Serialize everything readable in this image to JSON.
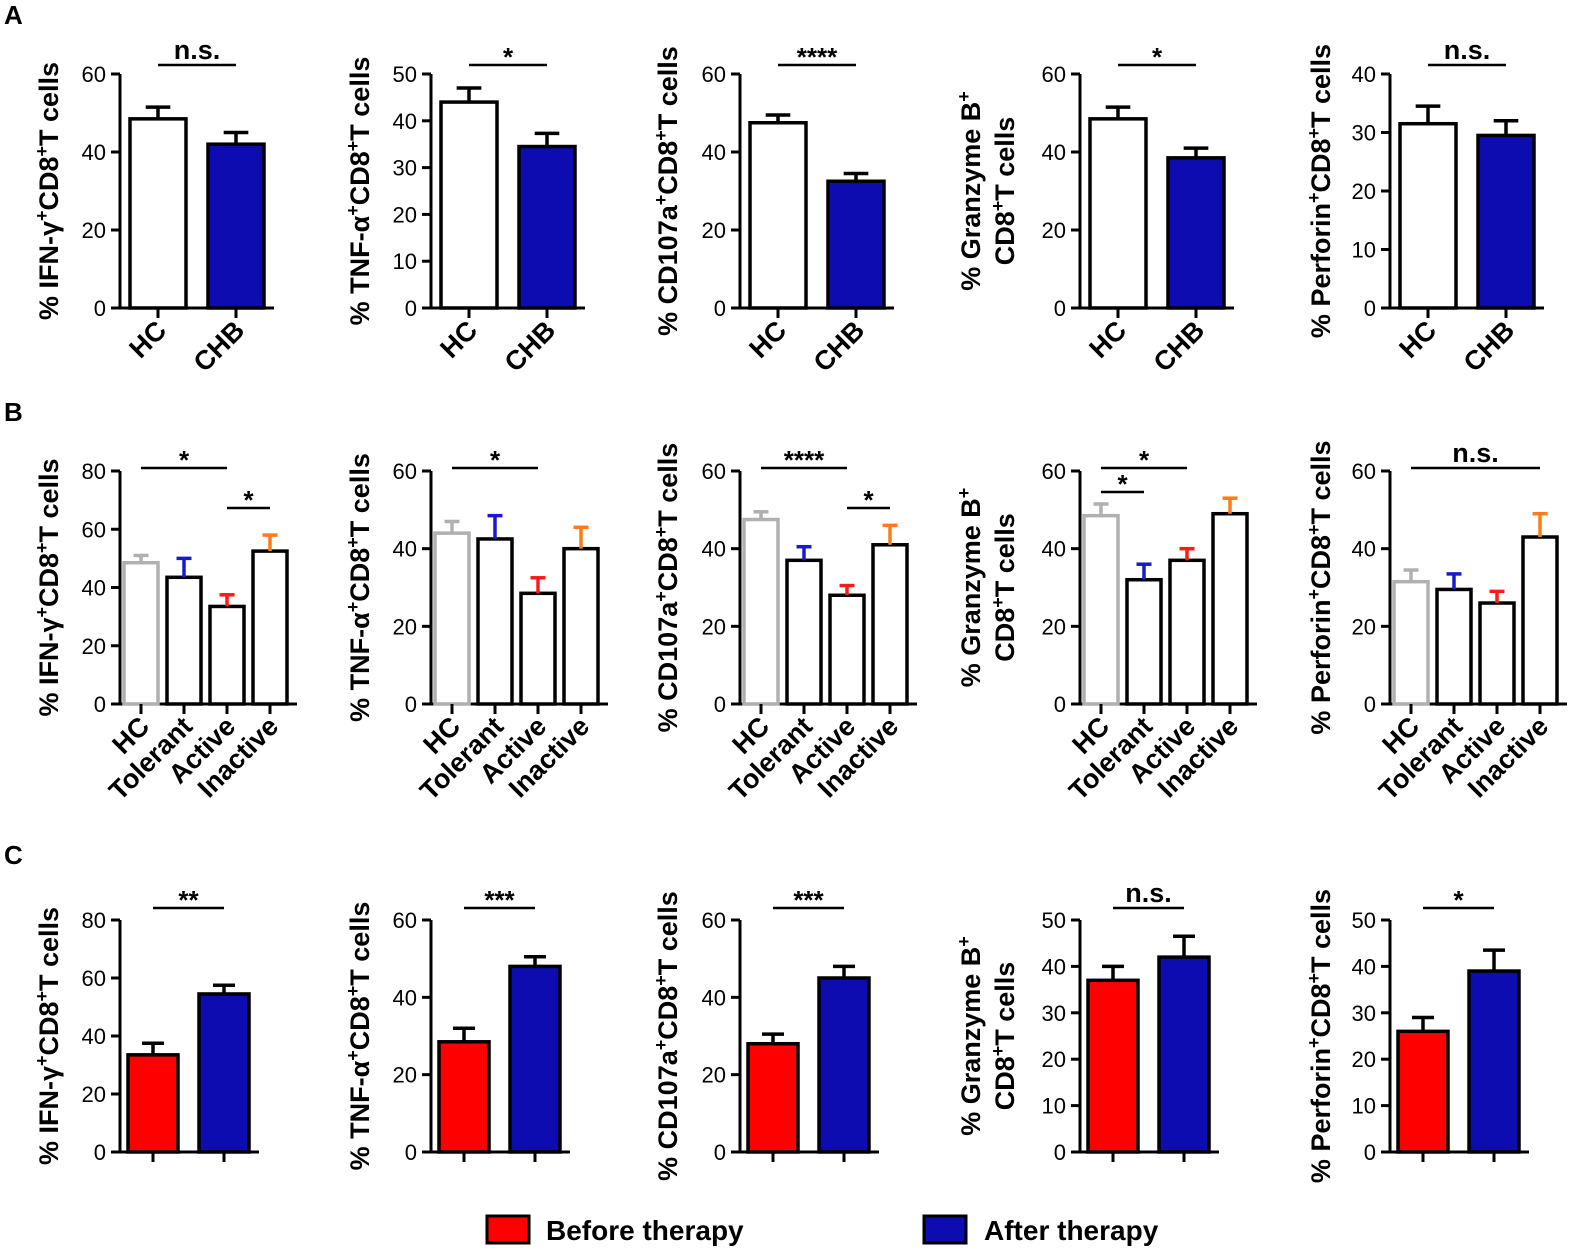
{
  "colors": {
    "white": "#ffffff",
    "blue": "#0c0cb0",
    "red": "#ff0000",
    "gray": "#b0b0b0",
    "black": "#000000",
    "err_blue": "#1a1ac8",
    "err_red": "#ff1a1a",
    "err_orange": "#ff7a1a",
    "err_gray": "#b0b0b0"
  },
  "panel_labels": [
    "A",
    "B",
    "C"
  ],
  "legend": {
    "before": "Before therapy",
    "after": "After therapy"
  },
  "chart_data": [
    {
      "id": "A1",
      "type": "bar",
      "ylabel": "% IFN-γ+CD8+T cells",
      "ylim": [
        0,
        60
      ],
      "ticks": [
        0,
        20,
        40,
        60
      ],
      "categories": [
        "HC",
        "CHB"
      ],
      "values": [
        48.5,
        42
      ],
      "errors": [
        3,
        3
      ],
      "fill": [
        "white",
        "blue"
      ],
      "edge": [
        "black",
        "black"
      ],
      "err": [
        "black",
        "black"
      ],
      "sig": [
        {
          "from": 0,
          "to": 1,
          "label": "n.s."
        }
      ]
    },
    {
      "id": "A2",
      "type": "bar",
      "ylabel": "% TNF-α+CD8+T cells",
      "ylim": [
        0,
        50
      ],
      "ticks": [
        0,
        10,
        20,
        30,
        40,
        50
      ],
      "categories": [
        "HC",
        "CHB"
      ],
      "values": [
        44,
        34.5
      ],
      "errors": [
        3,
        2.8
      ],
      "fill": [
        "white",
        "blue"
      ],
      "edge": [
        "black",
        "black"
      ],
      "err": [
        "black",
        "black"
      ],
      "sig": [
        {
          "from": 0,
          "to": 1,
          "label": "*"
        }
      ]
    },
    {
      "id": "A3",
      "type": "bar",
      "ylabel": "% CD107a+CD8+T cells",
      "ylim": [
        0,
        60
      ],
      "ticks": [
        0,
        20,
        40,
        60
      ],
      "categories": [
        "HC",
        "CHB"
      ],
      "values": [
        47.5,
        32.5
      ],
      "errors": [
        2,
        2
      ],
      "fill": [
        "white",
        "blue"
      ],
      "edge": [
        "black",
        "black"
      ],
      "err": [
        "black",
        "black"
      ],
      "sig": [
        {
          "from": 0,
          "to": 1,
          "label": "****"
        }
      ]
    },
    {
      "id": "A4",
      "type": "bar",
      "ylabel": "% Granzyme B+ CD8+T cells",
      "ylim": [
        0,
        60
      ],
      "ticks": [
        0,
        20,
        40,
        60
      ],
      "categories": [
        "HC",
        "CHB"
      ],
      "values": [
        48.5,
        38.5
      ],
      "errors": [
        3,
        2.5
      ],
      "fill": [
        "white",
        "blue"
      ],
      "edge": [
        "black",
        "black"
      ],
      "err": [
        "black",
        "black"
      ],
      "sig": [
        {
          "from": 0,
          "to": 1,
          "label": "*"
        }
      ]
    },
    {
      "id": "A5",
      "type": "bar",
      "ylabel": "% Perforin+CD8+T cells",
      "ylim": [
        0,
        40
      ],
      "ticks": [
        0,
        10,
        20,
        30,
        40
      ],
      "categories": [
        "HC",
        "CHB"
      ],
      "values": [
        31.5,
        29.5
      ],
      "errors": [
        3,
        2.5
      ],
      "fill": [
        "white",
        "blue"
      ],
      "edge": [
        "black",
        "black"
      ],
      "err": [
        "black",
        "black"
      ],
      "sig": [
        {
          "from": 0,
          "to": 1,
          "label": "n.s."
        }
      ]
    },
    {
      "id": "B1",
      "type": "bar",
      "ylabel": "% IFN-γ+CD8+T cells",
      "ylim": [
        0,
        80
      ],
      "ticks": [
        0,
        20,
        40,
        60,
        80
      ],
      "categories": [
        "HC",
        "Tolerant",
        "Active",
        "Inactive"
      ],
      "values": [
        48.5,
        43.5,
        33.5,
        52.5
      ],
      "errors": [
        2.5,
        6.5,
        4,
        5.5
      ],
      "fill": [
        "white",
        "white",
        "white",
        "white"
      ],
      "edge": [
        "gray",
        "black",
        "black",
        "black"
      ],
      "err": [
        "err_gray",
        "err_blue",
        "err_red",
        "err_orange"
      ],
      "sig": [
        {
          "from": 0,
          "to": 2,
          "label": "*",
          "level": 0
        },
        {
          "from": 2,
          "to": 3,
          "label": "*",
          "level": 1
        }
      ]
    },
    {
      "id": "B2",
      "type": "bar",
      "ylabel": "% TNF-α+CD8+T cells",
      "ylim": [
        0,
        60
      ],
      "ticks": [
        0,
        20,
        40,
        60
      ],
      "categories": [
        "HC",
        "Tolerant",
        "Active",
        "Inactive"
      ],
      "values": [
        44,
        42.5,
        28.5,
        40
      ],
      "errors": [
        3,
        6,
        4,
        5.5
      ],
      "fill": [
        "white",
        "white",
        "white",
        "white"
      ],
      "edge": [
        "gray",
        "black",
        "black",
        "black"
      ],
      "err": [
        "err_gray",
        "err_blue",
        "err_red",
        "err_orange"
      ],
      "sig": [
        {
          "from": 0,
          "to": 2,
          "label": "*",
          "level": 0
        }
      ]
    },
    {
      "id": "B3",
      "type": "bar",
      "ylabel": "% CD107a+CD8+T cells",
      "ylim": [
        0,
        60
      ],
      "ticks": [
        0,
        20,
        40,
        60
      ],
      "categories": [
        "HC",
        "Tolerant",
        "Active",
        "Inactive"
      ],
      "values": [
        47.5,
        37,
        28,
        41
      ],
      "errors": [
        2,
        3.5,
        2.5,
        5
      ],
      "fill": [
        "white",
        "white",
        "white",
        "white"
      ],
      "edge": [
        "gray",
        "black",
        "black",
        "black"
      ],
      "err": [
        "err_gray",
        "err_blue",
        "err_red",
        "err_orange"
      ],
      "sig": [
        {
          "from": 0,
          "to": 2,
          "label": "****",
          "level": 0
        },
        {
          "from": 2,
          "to": 3,
          "label": "*",
          "level": 1
        }
      ]
    },
    {
      "id": "B4",
      "type": "bar",
      "ylabel": "% Granzyme B+ CD8+T cells",
      "ylim": [
        0,
        60
      ],
      "ticks": [
        0,
        20,
        40,
        60
      ],
      "categories": [
        "HC",
        "Tolerant",
        "Active",
        "Inactive"
      ],
      "values": [
        48.5,
        32,
        37,
        49
      ],
      "errors": [
        3,
        4,
        3,
        4
      ],
      "fill": [
        "white",
        "white",
        "white",
        "white"
      ],
      "edge": [
        "gray",
        "black",
        "black",
        "black"
      ],
      "err": [
        "err_gray",
        "err_blue",
        "err_red",
        "err_orange"
      ],
      "sig": [
        {
          "from": 0,
          "to": 2,
          "label": "*",
          "level": 0
        },
        {
          "from": 0,
          "to": 1,
          "label": "*",
          "level": 1
        }
      ]
    },
    {
      "id": "B5",
      "type": "bar",
      "ylabel": "% Perforin+CD8+T cells",
      "ylim": [
        0,
        60
      ],
      "ticks": [
        0,
        20,
        40,
        60
      ],
      "categories": [
        "HC",
        "Tolerant",
        "Active",
        "Inactive"
      ],
      "values": [
        31.5,
        29.5,
        26,
        43
      ],
      "errors": [
        3,
        4,
        3,
        6
      ],
      "fill": [
        "white",
        "white",
        "white",
        "white"
      ],
      "edge": [
        "gray",
        "black",
        "black",
        "black"
      ],
      "err": [
        "err_gray",
        "err_blue",
        "err_red",
        "err_orange"
      ],
      "sig": [
        {
          "from": 0,
          "to": 3,
          "label": "n.s.",
          "level": 0
        }
      ]
    },
    {
      "id": "C1",
      "type": "bar",
      "ylabel": "% IFN-γ+CD8+T cells",
      "ylim": [
        0,
        80
      ],
      "ticks": [
        0,
        20,
        40,
        60,
        80
      ],
      "categories": [
        "Before therapy",
        "After therapy"
      ],
      "values": [
        33.5,
        54.5
      ],
      "errors": [
        4,
        3
      ],
      "fill": [
        "red",
        "blue"
      ],
      "edge": [
        "black",
        "black"
      ],
      "err": [
        "black",
        "black"
      ],
      "sig": [
        {
          "from": 0,
          "to": 1,
          "label": "**"
        }
      ]
    },
    {
      "id": "C2",
      "type": "bar",
      "ylabel": "% TNF-α+CD8+T cells",
      "ylim": [
        0,
        60
      ],
      "ticks": [
        0,
        20,
        40,
        60
      ],
      "categories": [
        "Before therapy",
        "After therapy"
      ],
      "values": [
        28.5,
        48
      ],
      "errors": [
        3.5,
        2.5
      ],
      "fill": [
        "red",
        "blue"
      ],
      "edge": [
        "black",
        "black"
      ],
      "err": [
        "black",
        "black"
      ],
      "sig": [
        {
          "from": 0,
          "to": 1,
          "label": "***"
        }
      ]
    },
    {
      "id": "C3",
      "type": "bar",
      "ylabel": "% CD107a+CD8+T cells",
      "ylim": [
        0,
        60
      ],
      "ticks": [
        0,
        20,
        40,
        60
      ],
      "categories": [
        "Before therapy",
        "After therapy"
      ],
      "values": [
        28,
        45
      ],
      "errors": [
        2.5,
        3
      ],
      "fill": [
        "red",
        "blue"
      ],
      "edge": [
        "black",
        "black"
      ],
      "err": [
        "black",
        "black"
      ],
      "sig": [
        {
          "from": 0,
          "to": 1,
          "label": "***"
        }
      ]
    },
    {
      "id": "C4",
      "type": "bar",
      "ylabel": "% Granzyme B+ CD8+T cells",
      "ylim": [
        0,
        50
      ],
      "ticks": [
        0,
        10,
        20,
        30,
        40,
        50
      ],
      "categories": [
        "Before therapy",
        "After therapy"
      ],
      "values": [
        37,
        42
      ],
      "errors": [
        3,
        4.5
      ],
      "fill": [
        "red",
        "blue"
      ],
      "edge": [
        "black",
        "black"
      ],
      "err": [
        "black",
        "black"
      ],
      "sig": [
        {
          "from": 0,
          "to": 1,
          "label": "n.s."
        }
      ]
    },
    {
      "id": "C5",
      "type": "bar",
      "ylabel": "% Perforin+CD8+T cells",
      "ylim": [
        0,
        50
      ],
      "ticks": [
        0,
        10,
        20,
        30,
        40,
        50
      ],
      "categories": [
        "Before therapy",
        "After therapy"
      ],
      "values": [
        26,
        39
      ],
      "errors": [
        3,
        4.5
      ],
      "fill": [
        "red",
        "blue"
      ],
      "edge": [
        "black",
        "black"
      ],
      "err": [
        "black",
        "black"
      ],
      "sig": [
        {
          "from": 0,
          "to": 1,
          "label": "*"
        }
      ]
    }
  ]
}
